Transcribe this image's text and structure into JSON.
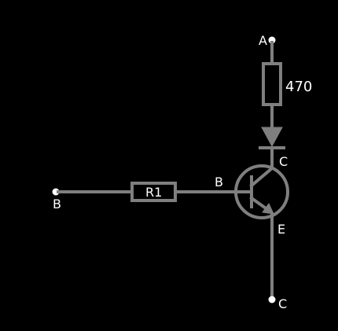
{
  "terminals": {
    "a": "A",
    "b": "B",
    "c": "C"
  },
  "resistor_top": {
    "value": "470"
  },
  "resistor_base": {
    "label": "R1"
  },
  "transistor": {
    "base": "B",
    "collector": "C",
    "emitter": "E"
  },
  "colors": {
    "background": "#000000",
    "wire": "#7f7f7f",
    "text": "#ffffff"
  }
}
